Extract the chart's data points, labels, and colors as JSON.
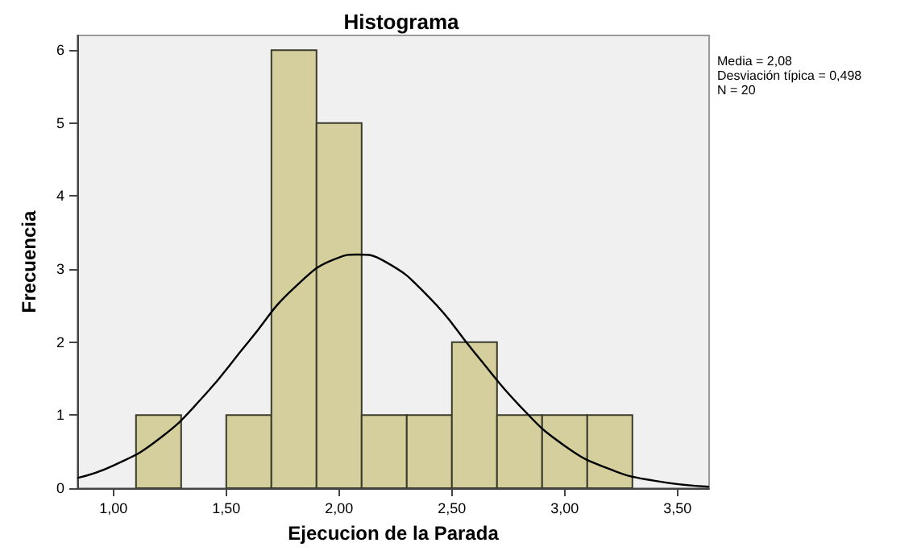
{
  "chart_data": {
    "type": "histogram",
    "title": "Histograma",
    "xlabel": "Ejecucion de la Parada",
    "ylabel": "Frecuencia",
    "series": [
      {
        "type": "histogram",
        "color": "#d4cf9c",
        "bins": [
          1.1,
          1.3,
          1.5,
          1.7,
          1.9,
          2.1,
          2.3,
          2.5,
          2.7,
          2.9,
          3.1,
          3.3
        ],
        "values": [
          1,
          0,
          1,
          6,
          5,
          1,
          1,
          2,
          1,
          1,
          1
        ]
      },
      {
        "type": "line",
        "color": "#000000",
        "x": [
          0.84,
          1.0,
          1.2,
          1.4,
          1.6,
          1.8,
          2.0,
          2.08,
          2.2,
          2.4,
          2.6,
          2.8,
          3.0,
          3.2,
          3.4,
          3.64
        ],
        "values": [
          0.14,
          0.31,
          0.67,
          1.26,
          2.01,
          2.74,
          3.16,
          3.2,
          3.11,
          2.61,
          1.86,
          1.13,
          0.58,
          0.26,
          0.1,
          0.02
        ]
      }
    ],
    "xlim": [
      0.84,
      3.64
    ],
    "xticks": [
      {
        "value": 1,
        "label": "1,00"
      },
      {
        "value": 1.5,
        "label": "1,50"
      },
      {
        "value": 2,
        "label": "2,00"
      },
      {
        "value": 2.5,
        "label": "2,50"
      },
      {
        "value": 3,
        "label": "3,00"
      },
      {
        "value": 3.5,
        "label": "3,50"
      }
    ],
    "ylim": [
      0,
      6.2
    ],
    "yticks": [
      0,
      1,
      2,
      3,
      4,
      5,
      6
    ],
    "grid": false,
    "marker": "none",
    "annotations": [
      "Media = 2,08",
      "Desviación típica = 0,498",
      "N = 20"
    ]
  }
}
